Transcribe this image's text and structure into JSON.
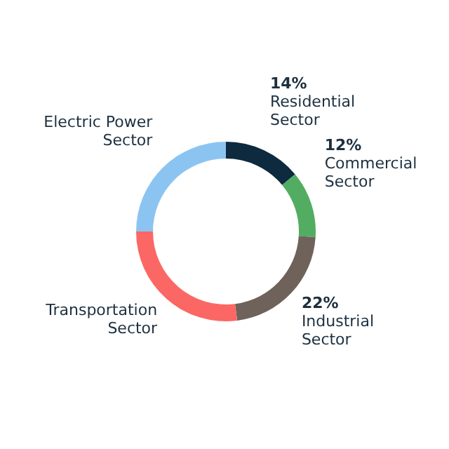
{
  "chart_data": {
    "type": "donut",
    "categories": [
      "Residential Sector",
      "Commercial Sector",
      "Industrial Sector",
      "Transportation Sector",
      "Electric Power Sector"
    ],
    "values": [
      14,
      12,
      22,
      27,
      25
    ],
    "colors": [
      "#0d2a3e",
      "#52ad62",
      "#6f625a",
      "#fb6764",
      "#8cc4f1"
    ],
    "value_labels": [
      "14%",
      "12%",
      "22%",
      null,
      null
    ]
  }
}
